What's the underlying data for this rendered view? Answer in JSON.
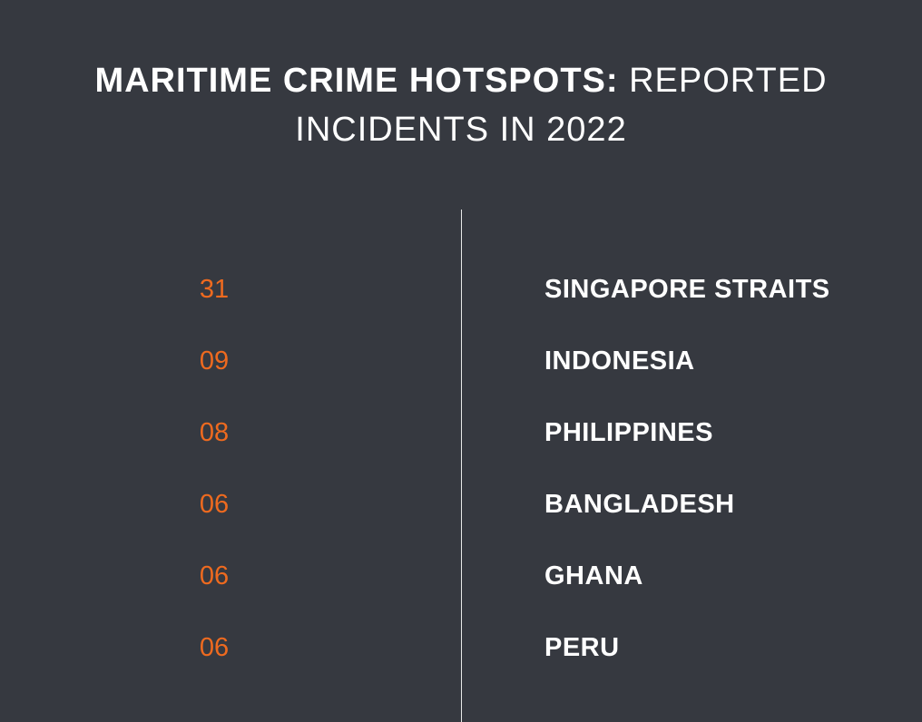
{
  "title": {
    "bold": "MARITIME CRIME HOTSPOTS:",
    "light": "REPORTED INCIDENTS IN 2022"
  },
  "colors": {
    "background": "#363940",
    "value_text": "#ee6a1f",
    "label_text": "#ffffff",
    "divider": "#e9e9e9"
  },
  "chart_data": {
    "type": "table",
    "title": "MARITIME CRIME HOTSPOTS: REPORTED INCIDENTS IN 2022",
    "categories": [
      "SINGAPORE STRAITS",
      "INDONESIA",
      "PHILIPPINES",
      "BANGLADESH",
      "GHANA",
      "PERU"
    ],
    "value_labels": [
      "31",
      "09",
      "08",
      "06",
      "06",
      "06"
    ],
    "values": [
      31,
      9,
      8,
      6,
      6,
      6
    ]
  }
}
